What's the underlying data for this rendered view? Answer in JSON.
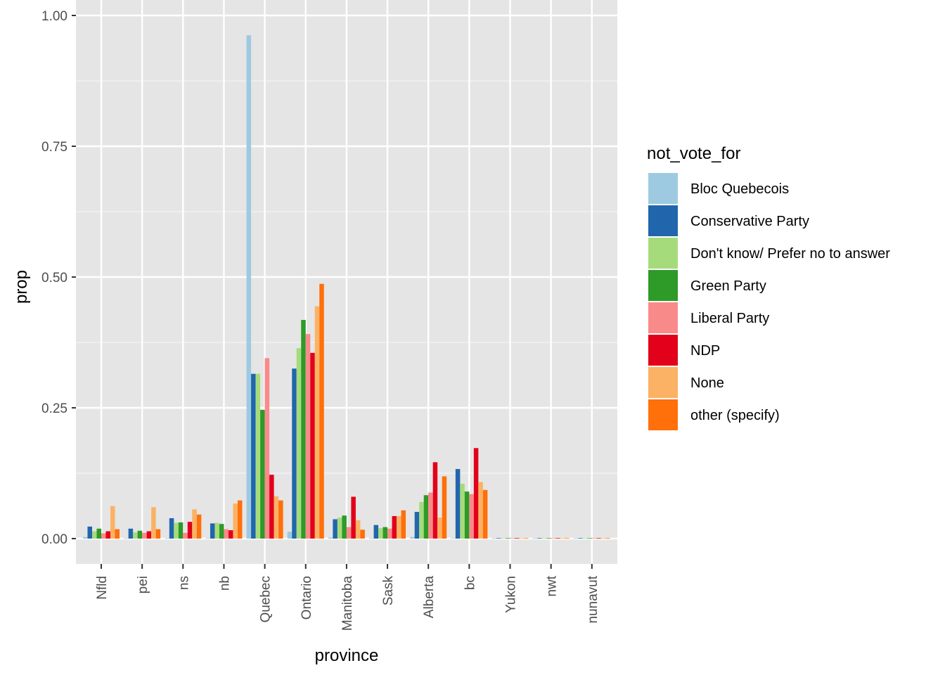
{
  "chart_data": {
    "type": "bar",
    "title": "",
    "xlabel": "province",
    "ylabel": "prop",
    "ylim": [
      -0.047,
      1.0
    ],
    "yticks": [
      0.0,
      0.25,
      0.5,
      0.75,
      1.0
    ],
    "ytick_labels": [
      "0.00",
      "0.25",
      "0.50",
      "0.75",
      "1.00"
    ],
    "grid": true,
    "legend_position": "right",
    "legend_title": "not_vote_for",
    "categories": [
      "Nfld",
      "pei",
      "ns",
      "nb",
      "Quebec",
      "Ontario",
      "Manitoba",
      "Sask",
      "Alberta",
      "bc",
      "Yukon",
      "nwt",
      "nunavut"
    ],
    "series": [
      {
        "name": "Bloc Quebecois",
        "color": "#9ECAE1",
        "values": [
          0.003,
          0.001,
          0.001,
          0.001,
          0.962,
          0.013,
          0.002,
          0.001,
          0.003,
          0.001,
          0.0,
          0.0,
          0.0
        ]
      },
      {
        "name": "Conservative Party",
        "color": "#2166AC",
        "values": [
          0.023,
          0.019,
          0.039,
          0.029,
          0.315,
          0.325,
          0.037,
          0.026,
          0.051,
          0.133,
          0.001,
          0.0,
          0.0
        ]
      },
      {
        "name": "Don't know/ Prefer no to answer",
        "color": "#A6DB7C",
        "values": [
          0.014,
          0.012,
          0.03,
          0.03,
          0.315,
          0.364,
          0.04,
          0.02,
          0.07,
          0.105,
          0.001,
          0.001,
          0.0
        ]
      },
      {
        "name": "Green Party",
        "color": "#2E9A27",
        "values": [
          0.019,
          0.015,
          0.031,
          0.028,
          0.246,
          0.418,
          0.044,
          0.022,
          0.083,
          0.09,
          0.001,
          0.001,
          0.0
        ]
      },
      {
        "name": "Liberal Party",
        "color": "#F98A8A",
        "values": [
          0.01,
          0.011,
          0.011,
          0.018,
          0.345,
          0.391,
          0.022,
          0.019,
          0.088,
          0.085,
          0.001,
          0.001,
          0.0
        ]
      },
      {
        "name": "NDP",
        "color": "#E2001A",
        "values": [
          0.014,
          0.014,
          0.032,
          0.016,
          0.122,
          0.355,
          0.08,
          0.043,
          0.146,
          0.173,
          0.001,
          0.001,
          0.0
        ]
      },
      {
        "name": "None",
        "color": "#FBB264",
        "values": [
          0.062,
          0.06,
          0.056,
          0.067,
          0.081,
          0.444,
          0.035,
          0.043,
          0.04,
          0.108,
          0.0,
          0.0,
          0.0
        ]
      },
      {
        "name": "other (specify)",
        "color": "#FF6F0A",
        "values": [
          0.018,
          0.018,
          0.046,
          0.073,
          0.073,
          0.487,
          0.017,
          0.054,
          0.119,
          0.093,
          0.0,
          0.0,
          0.0
        ]
      }
    ]
  }
}
